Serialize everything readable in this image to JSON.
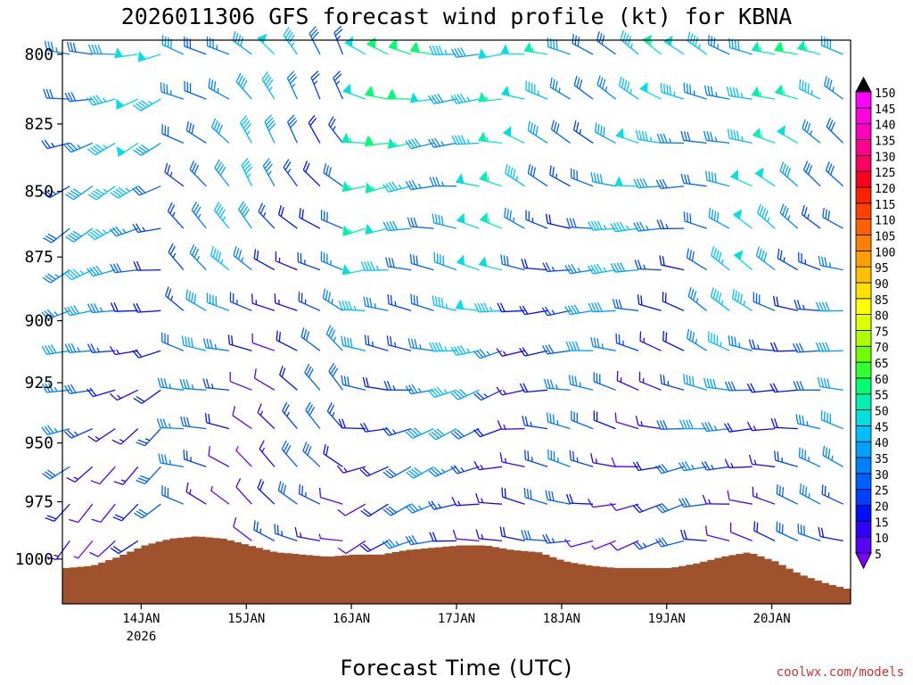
{
  "chart_data": {
    "type": "wind_barb_time_height",
    "title": "2026011306 GFS forecast wind profile (kt) for KBNA",
    "xlabel": "Forecast Time (UTC)",
    "ylabel": "",
    "x_ticks": [
      {
        "day": 14,
        "label": "14JAN",
        "sub": "2026"
      },
      {
        "day": 15,
        "label": "15JAN",
        "sub": ""
      },
      {
        "day": 16,
        "label": "16JAN",
        "sub": ""
      },
      {
        "day": 17,
        "label": "17JAN",
        "sub": ""
      },
      {
        "day": 18,
        "label": "18JAN",
        "sub": ""
      },
      {
        "day": 19,
        "label": "19JAN",
        "sub": ""
      },
      {
        "day": 20,
        "label": "20JAN",
        "sub": ""
      }
    ],
    "xlim_days": [
      13.25,
      20.75
    ],
    "y_levels": [
      800,
      825,
      850,
      875,
      900,
      925,
      950,
      975,
      1000
    ],
    "ylim_hPa": [
      1020,
      795
    ],
    "y_scale": "log",
    "colorbar": {
      "min": 5,
      "max": 150,
      "step": 5,
      "unit": "kt",
      "labels": [
        5,
        10,
        15,
        20,
        25,
        30,
        35,
        40,
        45,
        50,
        55,
        60,
        65,
        70,
        75,
        80,
        85,
        90,
        95,
        100,
        105,
        110,
        115,
        120,
        125,
        130,
        135,
        140,
        145,
        150
      ],
      "colors": [
        "#8000ff",
        "#5a00ff",
        "#3000ff",
        "#0010ff",
        "#0040ff",
        "#0060ff",
        "#0080ff",
        "#00a0ff",
        "#00c0ff",
        "#00e0e0",
        "#00f0b0",
        "#00ff70",
        "#30ff30",
        "#70ff00",
        "#b0ff00",
        "#e0ff00",
        "#ffff00",
        "#ffe000",
        "#ffc000",
        "#ffa000",
        "#ff8000",
        "#ff6000",
        "#ff4000",
        "#ff2000",
        "#ff0020",
        "#ff0060",
        "#ff0090",
        "#ff00c0",
        "#ff00e0",
        "#ff00ff"
      ]
    },
    "terrain_color": "#a0522d",
    "terrain_surface_pressure": [
      [
        13.25,
        1004
      ],
      [
        13.5,
        1003
      ],
      [
        13.75,
        999
      ],
      [
        14.0,
        994
      ],
      [
        14.25,
        991
      ],
      [
        14.5,
        990
      ],
      [
        14.75,
        991
      ],
      [
        15.0,
        994
      ],
      [
        15.25,
        997
      ],
      [
        15.5,
        998
      ],
      [
        15.75,
        999
      ],
      [
        16.0,
        998
      ],
      [
        16.25,
        998
      ],
      [
        16.5,
        996
      ],
      [
        16.75,
        995
      ],
      [
        17.0,
        994
      ],
      [
        17.25,
        994
      ],
      [
        17.5,
        996
      ],
      [
        17.75,
        997
      ],
      [
        18.0,
        1001
      ],
      [
        18.25,
        1003
      ],
      [
        18.5,
        1004
      ],
      [
        18.75,
        1004
      ],
      [
        19.0,
        1004
      ],
      [
        19.25,
        1002
      ],
      [
        19.5,
        999
      ],
      [
        19.75,
        997
      ],
      [
        20.0,
        1001
      ],
      [
        20.25,
        1007
      ],
      [
        20.5,
        1011
      ],
      [
        20.75,
        1014
      ]
    ],
    "wind_barbs_approx": [
      {
        "period": [
          13.25,
          14.3
        ],
        "direction_deg": 260,
        "speed_kt": 35
      },
      {
        "period": [
          14.3,
          15.0
        ],
        "direction_deg": 310,
        "speed_kt": 35
      },
      {
        "period": [
          15.0,
          16.0
        ],
        "direction_deg": 320,
        "speed_kt": 30
      },
      {
        "period": [
          16.0,
          17.6
        ],
        "direction_deg": 280,
        "speed_kt": 45
      },
      {
        "period": [
          17.6,
          19.2
        ],
        "direction_deg": 290,
        "speed_kt": 35
      },
      {
        "period": [
          19.2,
          20.75
        ],
        "direction_deg": 300,
        "speed_kt": 40
      }
    ]
  },
  "watermark": "coolwx.com/models"
}
